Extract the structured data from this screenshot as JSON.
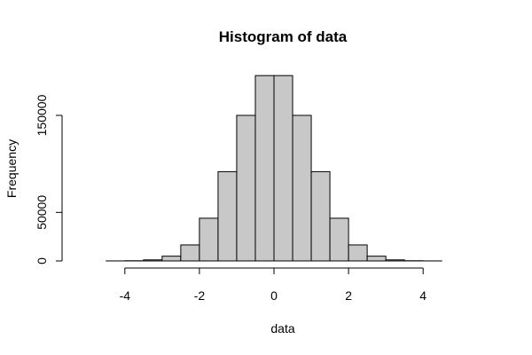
{
  "chart_data": {
    "type": "bar",
    "title": "Histogram of data",
    "xlabel": "data",
    "ylabel": "Frequency",
    "bin_width": 0.5,
    "bins": [
      {
        "x0": -5.0,
        "x1": -4.5,
        "count": 3
      },
      {
        "x0": -4.5,
        "x1": -4.0,
        "count": 30
      },
      {
        "x0": -4.0,
        "x1": -3.5,
        "count": 200
      },
      {
        "x0": -3.5,
        "x1": -3.0,
        "count": 1100
      },
      {
        "x0": -3.0,
        "x1": -2.5,
        "count": 4900
      },
      {
        "x0": -2.5,
        "x1": -2.0,
        "count": 16500
      },
      {
        "x0": -2.0,
        "x1": -1.5,
        "count": 44000
      },
      {
        "x0": -1.5,
        "x1": -1.0,
        "count": 92000
      },
      {
        "x0": -1.0,
        "x1": -0.5,
        "count": 150000
      },
      {
        "x0": -0.5,
        "x1": 0.0,
        "count": 191000
      },
      {
        "x0": 0.0,
        "x1": 0.5,
        "count": 191000
      },
      {
        "x0": 0.5,
        "x1": 1.0,
        "count": 150000
      },
      {
        "x0": 1.0,
        "x1": 1.5,
        "count": 92000
      },
      {
        "x0": 1.5,
        "x1": 2.0,
        "count": 44000
      },
      {
        "x0": 2.0,
        "x1": 2.5,
        "count": 16500
      },
      {
        "x0": 2.5,
        "x1": 3.0,
        "count": 4900
      },
      {
        "x0": 3.0,
        "x1": 3.5,
        "count": 1100
      },
      {
        "x0": 3.5,
        "x1": 4.0,
        "count": 200
      },
      {
        "x0": 4.0,
        "x1": 4.5,
        "count": 30
      },
      {
        "x0": 4.5,
        "x1": 5.0,
        "count": 3
      },
      {
        "x0": 5.0,
        "x1": 5.5,
        "count": 0
      }
    ],
    "xlim": [
      -5,
      5.5
    ],
    "ylim": [
      0,
      191000
    ],
    "xticks": [
      -4,
      -2,
      0,
      2,
      4
    ],
    "yticks": [
      0,
      50000,
      150000
    ],
    "ytick_labels": [
      "0",
      "50000",
      "150000"
    ],
    "grid": false,
    "colors": {
      "bar_fill": "#c8c8c8",
      "bar_stroke": "#000000"
    }
  }
}
